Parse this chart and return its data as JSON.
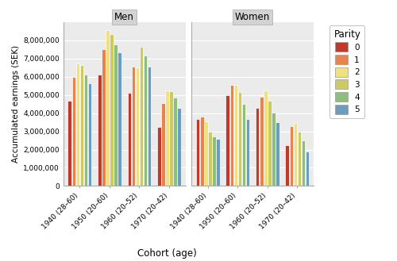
{
  "cohorts": [
    "1940 (28–60)",
    "1950 (20–60)",
    "1960 (20–52)",
    "1970 (20–42)"
  ],
  "parities": [
    0,
    1,
    2,
    3,
    4,
    5
  ],
  "parity_colors": [
    "#C1392B",
    "#E8834E",
    "#F2E07E",
    "#CBCB62",
    "#8BBF7A",
    "#6A9EC0"
  ],
  "men_values": [
    [
      4700000,
      6000000,
      6750000,
      6650000,
      6100000,
      5650000
    ],
    [
      6100000,
      7500000,
      8550000,
      8350000,
      7800000,
      7350000
    ],
    [
      5100000,
      6550000,
      6500000,
      7650000,
      7150000,
      6550000
    ],
    [
      3250000,
      4550000,
      5250000,
      5200000,
      4850000,
      4300000
    ]
  ],
  "women_values": [
    [
      3700000,
      3800000,
      3550000,
      3000000,
      2700000,
      2600000
    ],
    [
      5000000,
      5550000,
      5550000,
      5150000,
      4500000,
      3700000
    ],
    [
      4300000,
      4900000,
      5250000,
      4700000,
      4050000,
      3500000
    ],
    [
      2250000,
      3300000,
      3450000,
      3000000,
      2500000,
      1900000
    ]
  ],
  "ylim": [
    0,
    9000000
  ],
  "yticks": [
    0,
    1000000,
    2000000,
    3000000,
    4000000,
    5000000,
    6000000,
    7000000,
    8000000
  ],
  "ylabel": "Accumulated earnings (SEK)",
  "xlabel": "Cohort (age)",
  "panel_labels": [
    "Men",
    "Women"
  ],
  "legend_title": "Parity",
  "bg_color": "#EBEBEB",
  "panel_bg": "#E8E8E8",
  "bar_edge_color": "#FFFFFF",
  "grid_color": "#FFFFFF",
  "title_bg": "#D3D3D3"
}
